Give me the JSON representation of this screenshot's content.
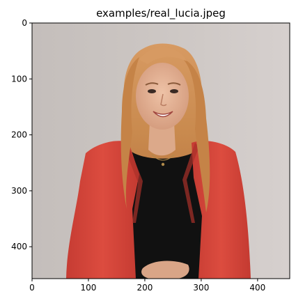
{
  "figure": {
    "title": "examples/real_lucia.jpeg",
    "image_description_name": "portrait-photo",
    "image_extent": {
      "x_max": 457,
      "y_max": 457
    },
    "x_ticks": [
      0,
      100,
      200,
      300,
      400
    ],
    "y_ticks": [
      0,
      100,
      200,
      300,
      400
    ],
    "colors": {
      "background": "#c9c3c0",
      "jacket": "#d8463a",
      "hair": "#c98a4e",
      "shirt": "#111111",
      "skin": "#e4b598"
    }
  }
}
